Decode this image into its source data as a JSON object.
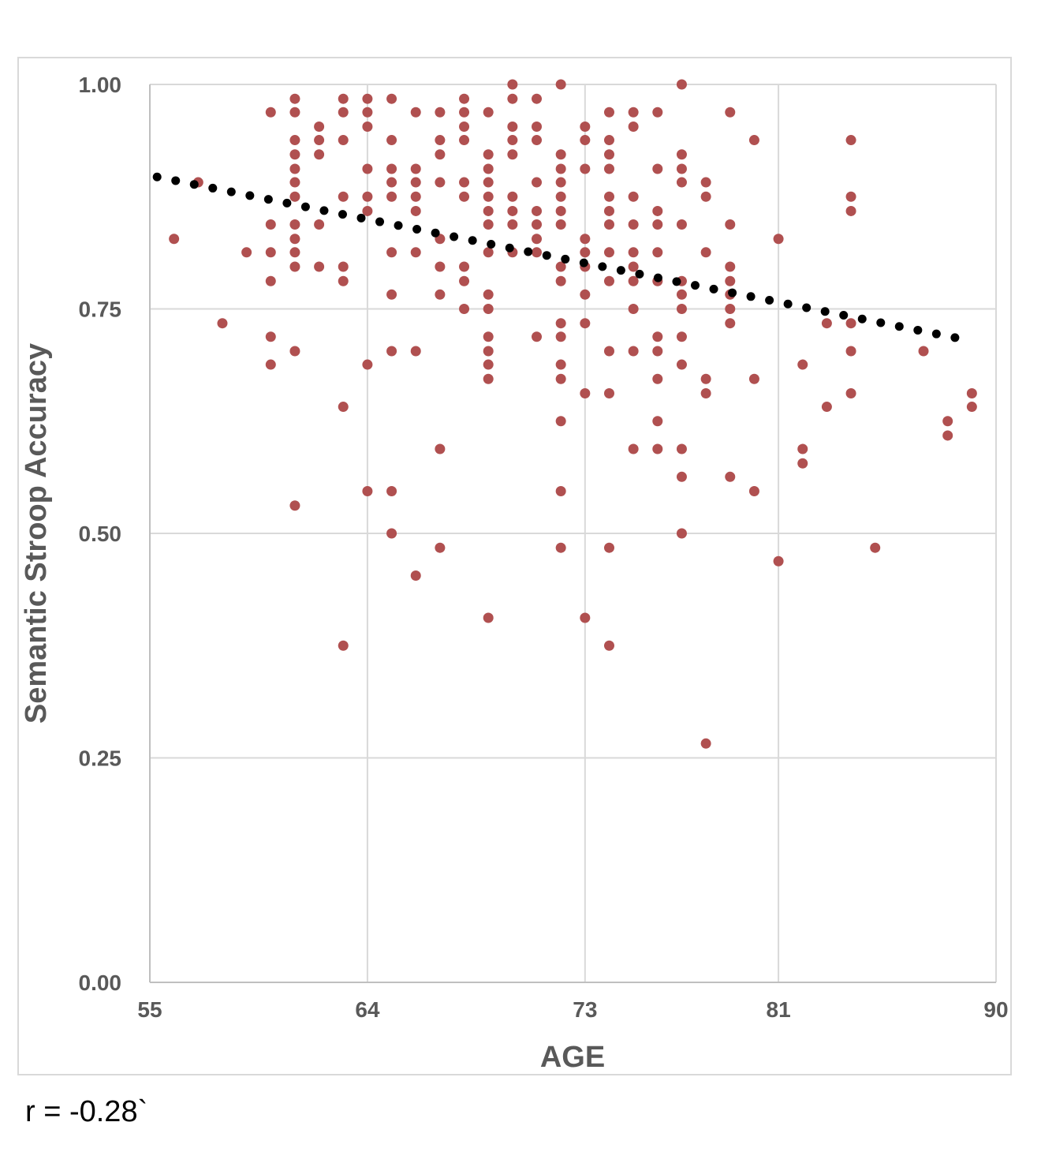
{
  "chart_data": {
    "type": "scatter",
    "xlabel": "AGE",
    "ylabel": "Semantic Stroop Accuracy",
    "xlim": [
      55,
      90
    ],
    "ylim": [
      0,
      1
    ],
    "x_ticks": [
      "55",
      "64",
      "73",
      "81",
      "90"
    ],
    "y_ticks": [
      "0.00",
      "0.25",
      "0.50",
      "0.75",
      "1.00"
    ],
    "grid": true,
    "point_color": "#b05050",
    "trend_color": "#000000",
    "trendline": {
      "style": "dotted",
      "x": [
        55.3,
        88.3
      ],
      "y": [
        0.897,
        0.718
      ]
    },
    "series": [
      {
        "points": [
          [
            56,
            0.828
          ],
          [
            57,
            0.891
          ],
          [
            58,
            0.734
          ],
          [
            59,
            0.813
          ],
          [
            60,
            0.969
          ],
          [
            60,
            0.844
          ],
          [
            60,
            0.813
          ],
          [
            60,
            0.781
          ],
          [
            60,
            0.719
          ],
          [
            60,
            0.688
          ],
          [
            61,
            0.984
          ],
          [
            61,
            0.969
          ],
          [
            61,
            0.938
          ],
          [
            61,
            0.922
          ],
          [
            61,
            0.906
          ],
          [
            61,
            0.891
          ],
          [
            61,
            0.875
          ],
          [
            61,
            0.844
          ],
          [
            61,
            0.828
          ],
          [
            61,
            0.813
          ],
          [
            61,
            0.797
          ],
          [
            61,
            0.703
          ],
          [
            61,
            0.531
          ],
          [
            62,
            0.953
          ],
          [
            62,
            0.938
          ],
          [
            62,
            0.922
          ],
          [
            62,
            0.844
          ],
          [
            62,
            0.797
          ],
          [
            63,
            0.984
          ],
          [
            63,
            0.969
          ],
          [
            63,
            0.938
          ],
          [
            63,
            0.875
          ],
          [
            63,
            0.797
          ],
          [
            63,
            0.781
          ],
          [
            63,
            0.641
          ],
          [
            63,
            0.375
          ],
          [
            64,
            0.984
          ],
          [
            64,
            0.969
          ],
          [
            64,
            0.953
          ],
          [
            64,
            0.906
          ],
          [
            64,
            0.875
          ],
          [
            64,
            0.859
          ],
          [
            64,
            0.688
          ],
          [
            64,
            0.547
          ],
          [
            65,
            0.984
          ],
          [
            65,
            0.938
          ],
          [
            65,
            0.906
          ],
          [
            65,
            0.891
          ],
          [
            65,
            0.875
          ],
          [
            65,
            0.813
          ],
          [
            65,
            0.766
          ],
          [
            65,
            0.703
          ],
          [
            65,
            0.547
          ],
          [
            65,
            0.5
          ],
          [
            66,
            0.969
          ],
          [
            66,
            0.906
          ],
          [
            66,
            0.891
          ],
          [
            66,
            0.875
          ],
          [
            66,
            0.859
          ],
          [
            66,
            0.813
          ],
          [
            66,
            0.703
          ],
          [
            66,
            0.453
          ],
          [
            67,
            0.969
          ],
          [
            67,
            0.938
          ],
          [
            67,
            0.922
          ],
          [
            67,
            0.891
          ],
          [
            67,
            0.828
          ],
          [
            67,
            0.797
          ],
          [
            67,
            0.766
          ],
          [
            67,
            0.594
          ],
          [
            67,
            0.484
          ],
          [
            68,
            0.984
          ],
          [
            68,
            0.969
          ],
          [
            68,
            0.953
          ],
          [
            68,
            0.938
          ],
          [
            68,
            0.891
          ],
          [
            68,
            0.875
          ],
          [
            68,
            0.797
          ],
          [
            68,
            0.781
          ],
          [
            68,
            0.75
          ],
          [
            69,
            0.969
          ],
          [
            69,
            0.922
          ],
          [
            69,
            0.906
          ],
          [
            69,
            0.891
          ],
          [
            69,
            0.875
          ],
          [
            69,
            0.859
          ],
          [
            69,
            0.844
          ],
          [
            69,
            0.813
          ],
          [
            69,
            0.766
          ],
          [
            69,
            0.75
          ],
          [
            69,
            0.719
          ],
          [
            69,
            0.703
          ],
          [
            69,
            0.688
          ],
          [
            69,
            0.672
          ],
          [
            69,
            0.406
          ],
          [
            70,
            1.0
          ],
          [
            70,
            0.984
          ],
          [
            70,
            0.953
          ],
          [
            70,
            0.938
          ],
          [
            70,
            0.922
          ],
          [
            70,
            0.875
          ],
          [
            70,
            0.859
          ],
          [
            70,
            0.844
          ],
          [
            70,
            0.813
          ],
          [
            71,
            0.984
          ],
          [
            71,
            0.953
          ],
          [
            71,
            0.938
          ],
          [
            71,
            0.891
          ],
          [
            71,
            0.859
          ],
          [
            71,
            0.844
          ],
          [
            71,
            0.828
          ],
          [
            71,
            0.813
          ],
          [
            71,
            0.719
          ],
          [
            72,
            1.0
          ],
          [
            72,
            0.922
          ],
          [
            72,
            0.906
          ],
          [
            72,
            0.891
          ],
          [
            72,
            0.875
          ],
          [
            72,
            0.859
          ],
          [
            72,
            0.844
          ],
          [
            72,
            0.797
          ],
          [
            72,
            0.781
          ],
          [
            72,
            0.734
          ],
          [
            72,
            0.719
          ],
          [
            72,
            0.688
          ],
          [
            72,
            0.672
          ],
          [
            72,
            0.625
          ],
          [
            72,
            0.547
          ],
          [
            72,
            0.484
          ],
          [
            73,
            0.953
          ],
          [
            73,
            0.938
          ],
          [
            73,
            0.906
          ],
          [
            73,
            0.828
          ],
          [
            73,
            0.813
          ],
          [
            73,
            0.797
          ],
          [
            73,
            0.766
          ],
          [
            73,
            0.734
          ],
          [
            73,
            0.656
          ],
          [
            73,
            0.406
          ],
          [
            74,
            0.969
          ],
          [
            74,
            0.938
          ],
          [
            74,
            0.922
          ],
          [
            74,
            0.906
          ],
          [
            74,
            0.875
          ],
          [
            74,
            0.859
          ],
          [
            74,
            0.844
          ],
          [
            74,
            0.813
          ],
          [
            74,
            0.781
          ],
          [
            74,
            0.703
          ],
          [
            74,
            0.656
          ],
          [
            74,
            0.484
          ],
          [
            74,
            0.375
          ],
          [
            75,
            0.969
          ],
          [
            75,
            0.953
          ],
          [
            75,
            0.875
          ],
          [
            75,
            0.844
          ],
          [
            75,
            0.813
          ],
          [
            75,
            0.797
          ],
          [
            75,
            0.781
          ],
          [
            75,
            0.75
          ],
          [
            75,
            0.703
          ],
          [
            75,
            0.594
          ],
          [
            76,
            0.969
          ],
          [
            76,
            0.906
          ],
          [
            76,
            0.859
          ],
          [
            76,
            0.844
          ],
          [
            76,
            0.813
          ],
          [
            76,
            0.781
          ],
          [
            76,
            0.719
          ],
          [
            76,
            0.703
          ],
          [
            76,
            0.672
          ],
          [
            76,
            0.625
          ],
          [
            76,
            0.594
          ],
          [
            77,
            1.0
          ],
          [
            77,
            0.922
          ],
          [
            77,
            0.906
          ],
          [
            77,
            0.891
          ],
          [
            77,
            0.844
          ],
          [
            77,
            0.781
          ],
          [
            77,
            0.766
          ],
          [
            77,
            0.75
          ],
          [
            77,
            0.719
          ],
          [
            77,
            0.688
          ],
          [
            77,
            0.594
          ],
          [
            77,
            0.563
          ],
          [
            77,
            0.5
          ],
          [
            78,
            0.891
          ],
          [
            78,
            0.875
          ],
          [
            78,
            0.813
          ],
          [
            78,
            0.672
          ],
          [
            78,
            0.656
          ],
          [
            78,
            0.266
          ],
          [
            79,
            0.969
          ],
          [
            79,
            0.844
          ],
          [
            79,
            0.797
          ],
          [
            79,
            0.781
          ],
          [
            79,
            0.766
          ],
          [
            79,
            0.75
          ],
          [
            79,
            0.734
          ],
          [
            79,
            0.563
          ],
          [
            80,
            0.938
          ],
          [
            80,
            0.672
          ],
          [
            80,
            0.547
          ],
          [
            81,
            0.828
          ],
          [
            81,
            0.469
          ],
          [
            82,
            0.688
          ],
          [
            82,
            0.594
          ],
          [
            82,
            0.578
          ],
          [
            83,
            0.734
          ],
          [
            83,
            0.641
          ],
          [
            84,
            0.938
          ],
          [
            84,
            0.875
          ],
          [
            84,
            0.859
          ],
          [
            84,
            0.734
          ],
          [
            84,
            0.703
          ],
          [
            84,
            0.656
          ],
          [
            85,
            0.484
          ],
          [
            87,
            0.703
          ],
          [
            88,
            0.625
          ],
          [
            88,
            0.609
          ],
          [
            89,
            0.656
          ],
          [
            89,
            0.641
          ]
        ]
      }
    ]
  },
  "note": "r = -0.28`"
}
